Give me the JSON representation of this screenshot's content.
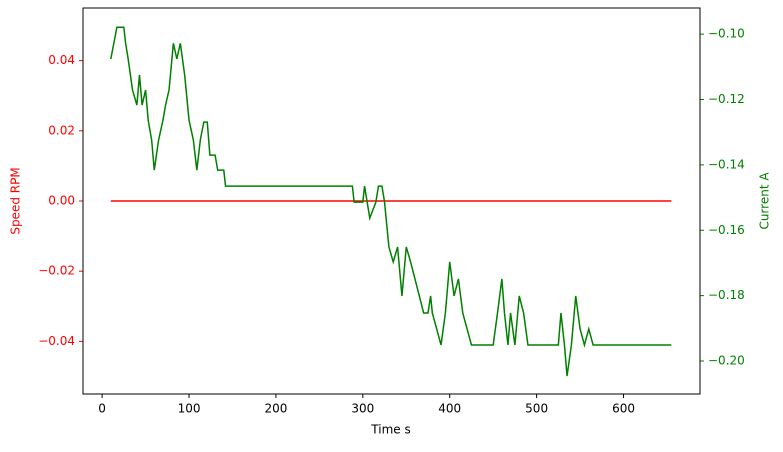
{
  "chart_data": {
    "type": "line",
    "xlabel": "Time s",
    "ylabel": "Speed RPM",
    "y2label": "Current A",
    "xlim": [
      -22,
      688
    ],
    "xticks": [
      0,
      100,
      200,
      300,
      400,
      500,
      600
    ],
    "ylim": [
      -0.055,
      0.055
    ],
    "yticks": [
      {
        "value": -0.04,
        "label": "−0.04"
      },
      {
        "value": -0.02,
        "label": "−0.02"
      },
      {
        "value": 0,
        "label": "0.00"
      },
      {
        "value": 0.02,
        "label": "0.02"
      },
      {
        "value": 0.04,
        "label": "0.04"
      }
    ],
    "y2lim": [
      -0.2101,
      -0.092
    ],
    "y2ticks": [
      {
        "value": -0.2,
        "label": "−0.20"
      },
      {
        "value": -0.18,
        "label": "−0.18"
      },
      {
        "value": -0.16,
        "label": "−0.16"
      },
      {
        "value": -0.14,
        "label": "−0.14"
      },
      {
        "value": -0.12,
        "label": "−0.12"
      },
      {
        "value": -0.1,
        "label": "−0.10"
      }
    ],
    "y_color": "#ff0000",
    "y2_color": "#008000",
    "series": [
      {
        "color": "#ff0000",
        "x": [
          10,
          655
        ],
        "values": [
          0,
          0
        ]
      },
      {
        "color": "#008000",
        "axis": "y2",
        "x": [
          10,
          17,
          25,
          27,
          30,
          35,
          40,
          43,
          46,
          50,
          53,
          57,
          60,
          65,
          70,
          73,
          77,
          82,
          86,
          90,
          95,
          100,
          105,
          109,
          113,
          117,
          121,
          124,
          130,
          133,
          140,
          142,
          200,
          250,
          288,
          290,
          300,
          302,
          305,
          308,
          315,
          318,
          322,
          325,
          330,
          335,
          340,
          345,
          350,
          355,
          360,
          365,
          370,
          375,
          378,
          380,
          385,
          390,
          395,
          400,
          405,
          410,
          415,
          420,
          425,
          450,
          455,
          460,
          463,
          467,
          470,
          475,
          480,
          485,
          490,
          525,
          528,
          532,
          535,
          540,
          545,
          550,
          555,
          560,
          565,
          655
        ],
        "values": [
          -0.1076,
          -0.0979,
          -0.0979,
          -0.1028,
          -0.1076,
          -0.1171,
          -0.1217,
          -0.1125,
          -0.1217,
          -0.1171,
          -0.1263,
          -0.1324,
          -0.1416,
          -0.1324,
          -0.1263,
          -0.1217,
          -0.1171,
          -0.1028,
          -0.1076,
          -0.1028,
          -0.1125,
          -0.1263,
          -0.1324,
          -0.1416,
          -0.1324,
          -0.1269,
          -0.1269,
          -0.137,
          -0.137,
          -0.1416,
          -0.1416,
          -0.1465,
          -0.1465,
          -0.1465,
          -0.1465,
          -0.1514,
          -0.1514,
          -0.1465,
          -0.1514,
          -0.1563,
          -0.1514,
          -0.1465,
          -0.1465,
          -0.1514,
          -0.1651,
          -0.1697,
          -0.1651,
          -0.1801,
          -0.1651,
          -0.1697,
          -0.1749,
          -0.1801,
          -0.1853,
          -0.1853,
          -0.1801,
          -0.1853,
          -0.1902,
          -0.1951,
          -0.1853,
          -0.1697,
          -0.1801,
          -0.1749,
          -0.1853,
          -0.1902,
          -0.1951,
          -0.1951,
          -0.1853,
          -0.1749,
          -0.1853,
          -0.1951,
          -0.1853,
          -0.1951,
          -0.1801,
          -0.1853,
          -0.1951,
          -0.1951,
          -0.1853,
          -0.1951,
          -0.2046,
          -0.1951,
          -0.1801,
          -0.1902,
          -0.1951,
          -0.1902,
          -0.1951,
          -0.1951
        ]
      }
    ]
  }
}
